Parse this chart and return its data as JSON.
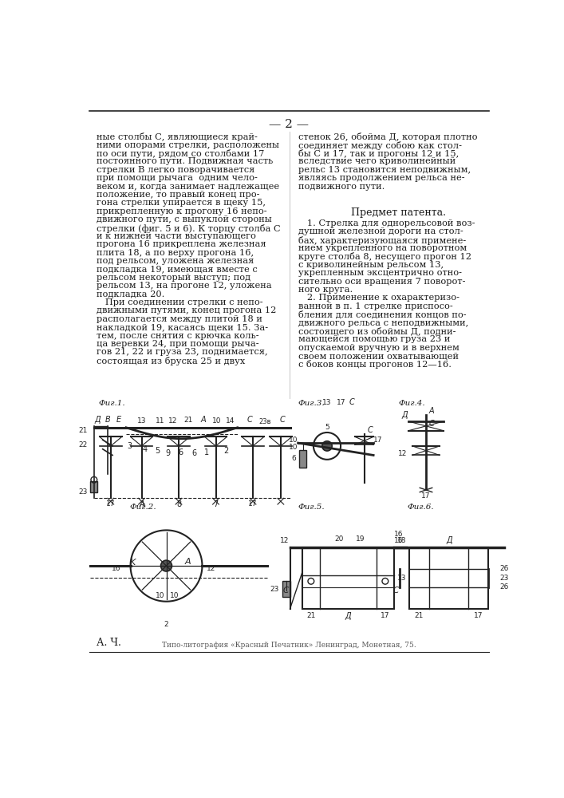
{
  "page_number": "— 2 —",
  "background_color": "#ffffff",
  "text_color": "#1a1a1a",
  "border_color": "#333333",
  "col1_text": [
    "ные столбы С, являющиеся край-",
    "ними опорами стрелки, расположены",
    "по оси пути, рядом со столбами 17",
    "постоянного пути. Подвижная часть",
    "стрелки В легко поворачивается",
    "при помощи рычага  одним чело-",
    "веком и, когда занимает надлежащее",
    "положение, то правый конец про-",
    "гона стрелки упирается в щеку 15,",
    "прикрепленную к прогону 16 непо-",
    "движного пути, с выпуклой стороны",
    "стрелки (фиг. 5 и 6). К торцу столба С",
    "и к нижней части выступающего",
    "прогона 16 прикреплена железная",
    "плита 18, а по верху прогона 16,",
    "под рельсом, уложена железная",
    "подкладка 19, имеющая вместе с",
    "рельсом некоторый выступ; под",
    "рельсом 13, на прогоне 12, уложена",
    "подкладка 20.",
    "   При соединении стрелки с непо-",
    "движными путями, конец прогона 12",
    "располагается между плитой 18 и",
    "накладкой 19, касаясь щеки 15. За-",
    "тем, после снятия с крючка коль-",
    "ца веревки 24, при помощи рыча-",
    "гов 21, 22 и груза 23, поднимается,",
    "состоящая из бруска 25 и двух"
  ],
  "col2_text_top": [
    "стенок 26, обойма Д, которая плотно",
    "соединяет между собою как стол-",
    "бы С и 17, так и прогоны 12 и 15,",
    "вследствие чего криволинейный",
    "рельс 13 становится неподвижным,",
    "являясь продолжением рельса не-",
    "подвижного пути."
  ],
  "subject_title": "Предмет патента.",
  "subject_text": [
    "   1. Стрелка для однорельсовой воз-",
    "душной железной дороги на стол-",
    "бах, характеризующаяся примене-",
    "нием укрепленного на поворотном",
    "круге столба 8, несущего прогон 12",
    "с криволинейным рельсом 13,",
    "укрепленным эксцентрично отно-",
    "сительно оси вращения 7 поворот-",
    "ного круга.",
    "   2. Применение к охарактеризо-",
    "ванной в п. 1 стрелке приспосо-",
    "бления для соединения концов по-",
    "движного рельса с неподвижными,",
    "состоящего из обоймы Д, подни-",
    "мающейся помощью груза 23 и",
    "опускаемой вручную и в верхнем",
    "своем положении охватывающей",
    "с боков концы прогонов 12—16."
  ],
  "bottom_label1": "А. Ч.",
  "bottom_label2": "Типо-литография «Красный Печатник» Ленинград, Монетная, 75.",
  "line_color": "#222222",
  "dark": "#222222",
  "mid": "#555555",
  "light": "#888888"
}
